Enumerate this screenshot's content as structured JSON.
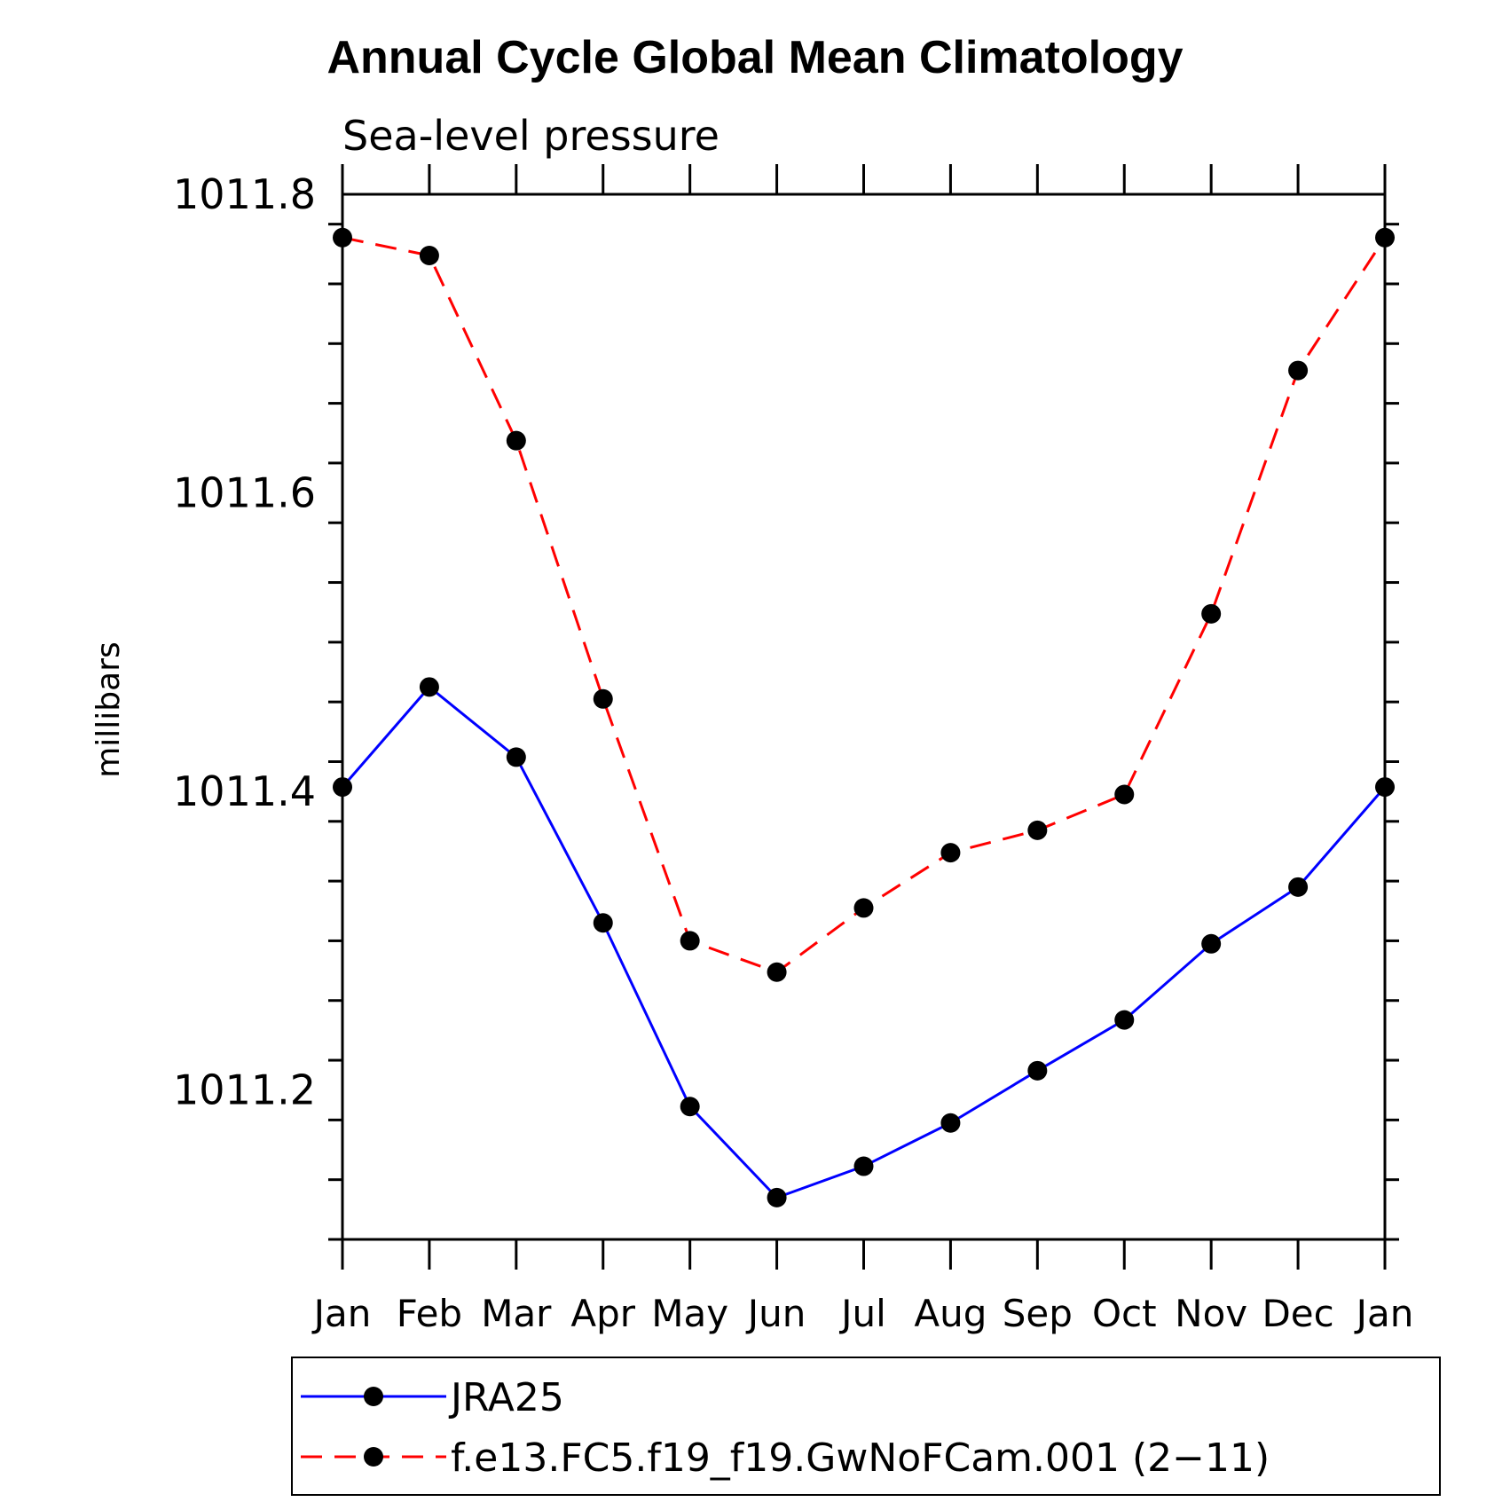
{
  "chart_data": {
    "type": "line",
    "title": "Annual Cycle Global Mean Climatology",
    "subtitle": "Sea-level pressure",
    "xlabel": "",
    "ylabel": "millibars",
    "categories": [
      "Jan",
      "Feb",
      "Mar",
      "Apr",
      "May",
      "Jun",
      "Jul",
      "Aug",
      "Sep",
      "Oct",
      "Nov",
      "Dec",
      "Jan"
    ],
    "ylim": [
      1011.1,
      1011.8
    ],
    "yticks": [
      "1011.2",
      "1011.4",
      "1011.6",
      "1011.8"
    ],
    "grid": false,
    "legend_position": "bottom",
    "series": [
      {
        "name": "JRA25",
        "color": "#0000ff",
        "dash": "solid",
        "marker": "filled-circle",
        "values": [
          1011.403,
          1011.47,
          1011.423,
          1011.312,
          1011.189,
          1011.128,
          1011.149,
          1011.178,
          1011.213,
          1011.247,
          1011.298,
          1011.336,
          1011.403
        ]
      },
      {
        "name": "f.e13.FC5.f19_f19.GwNoFCam.001 (2−11)",
        "color": "#ff0000",
        "dash": "dashed",
        "marker": "filled-circle",
        "values": [
          1011.771,
          1011.759,
          1011.635,
          1011.462,
          1011.3,
          1011.279,
          1011.322,
          1011.359,
          1011.374,
          1011.398,
          1011.519,
          1011.682,
          1011.771
        ]
      }
    ]
  }
}
